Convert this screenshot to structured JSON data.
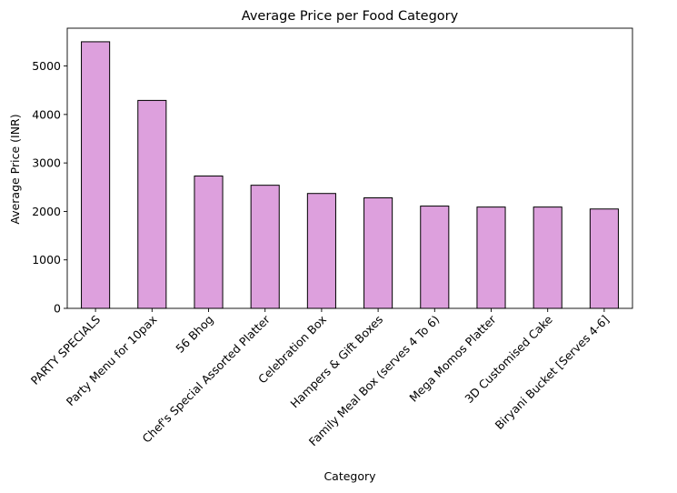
{
  "chart_data": {
    "type": "bar",
    "title": "Average Price per Food Category",
    "xlabel": "Category",
    "ylabel": "Average Price (INR)",
    "categories": [
      "PARTY SPECIALS",
      "Party Menu for 10pax",
      "56 Bhog",
      "Chef's Special Assorted Platter",
      "Celebration Box",
      "Hampers & Gift Boxes",
      "Family Meal Box (serves 4 To 6)",
      "Mega Momos Platter",
      "3D Customised Cake",
      "Biryani Bucket [Serves 4-6]"
    ],
    "values": [
      5500,
      4290,
      2730,
      2540,
      2370,
      2280,
      2110,
      2090,
      2090,
      2050
    ],
    "ylim": [
      0,
      5780
    ],
    "yticks": [
      0,
      1000,
      2000,
      3000,
      4000,
      5000
    ],
    "bar_color": "#dda0dd",
    "edge_color": "#000000",
    "grid": false,
    "legend": "none"
  }
}
